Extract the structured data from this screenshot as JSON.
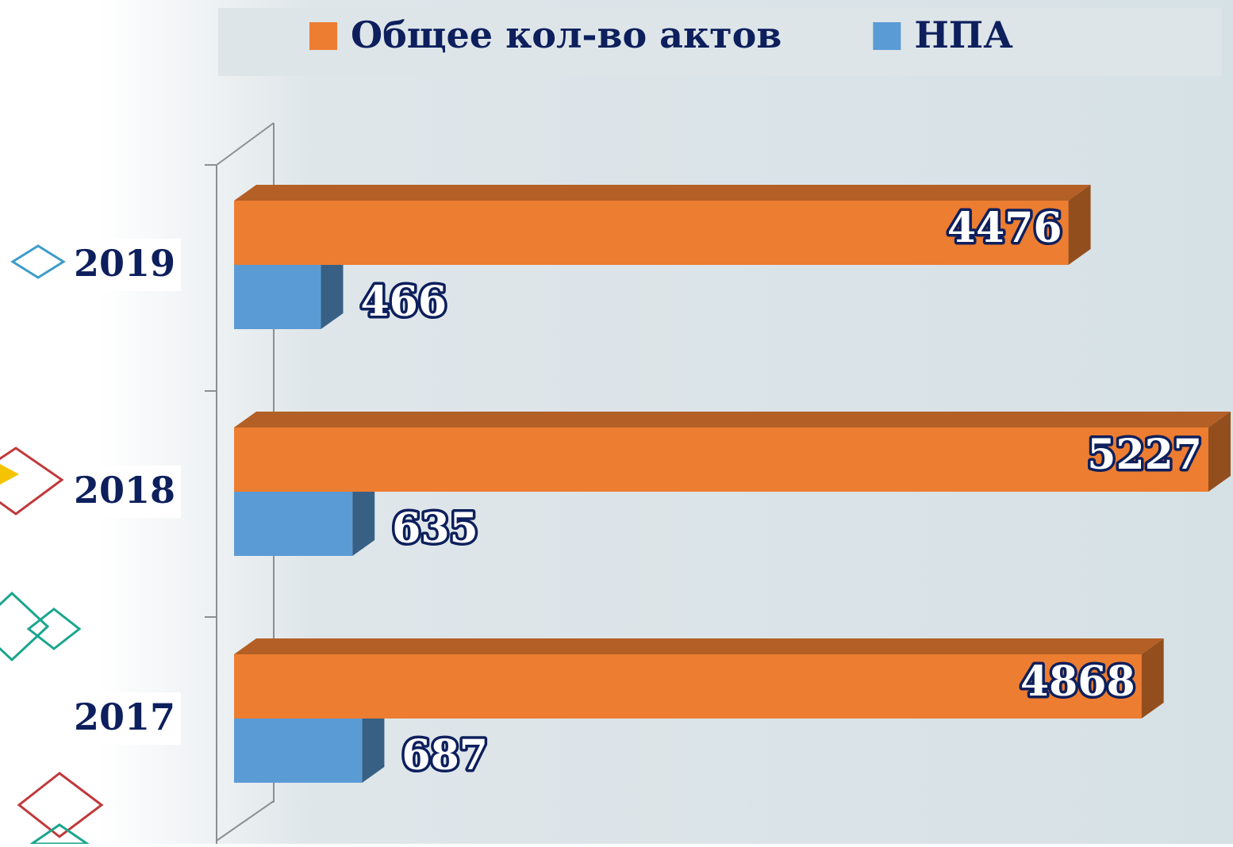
{
  "chart_data": {
    "type": "bar",
    "orientation": "horizontal",
    "categories": [
      "2019",
      "2018",
      "2017"
    ],
    "series": [
      {
        "name": "Общее кол-во актов",
        "color": "#ed7d31",
        "values": [
          4476,
          5227,
          4868
        ]
      },
      {
        "name": "НПА",
        "color": "#5b9bd5",
        "values": [
          466,
          635,
          687
        ]
      }
    ],
    "legend": "top"
  }
}
